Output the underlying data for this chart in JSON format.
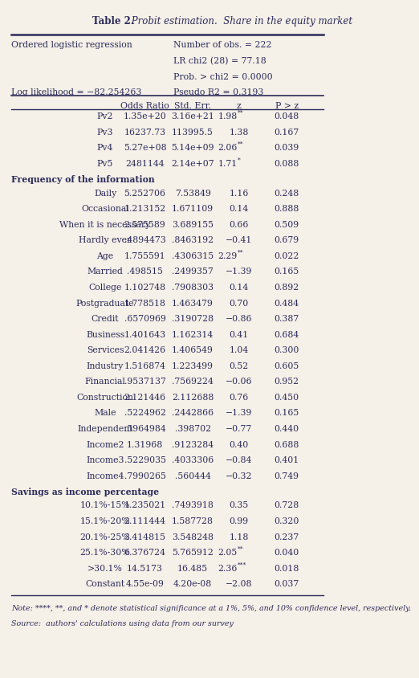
{
  "title_bold": "Table 2.",
  "title_italic": " Probit estimation.  Share in the equity market",
  "header_left1": "Ordered logistic regression",
  "header_right1": "Number of obs. = 222",
  "header_right2": "LR chi2 (28) = 77.18",
  "header_right3": "Prob. > chi2 = 0.0000",
  "header_left2": "Log likelihood = −82.254263",
  "header_right4": "Pseudo R2 = 0.3193",
  "col_headers": [
    "",
    "Odds Ratio",
    "Std. Err.",
    "z",
    "P > z"
  ],
  "rows": [
    {
      "label": "Pv2",
      "bold": false,
      "odds": "1.35e+20",
      "se": "3.16e+21",
      "z": "1.98**",
      "p": "0.048"
    },
    {
      "label": "Pv3",
      "bold": false,
      "odds": "16237.73",
      "se": "113995.5",
      "z": "1.38",
      "p": "0.167"
    },
    {
      "label": "Pv4",
      "bold": false,
      "odds": "5.27e+08",
      "se": "5.14e+09",
      "z": "2.06**",
      "p": "0.039"
    },
    {
      "label": "Pv5",
      "bold": false,
      "odds": "2481144",
      "se": "2.14e+07",
      "z": "1.71*",
      "p": "0.088"
    },
    {
      "label": "Frequency of the information",
      "bold": true,
      "odds": "",
      "se": "",
      "z": "",
      "p": ""
    },
    {
      "label": "Daily",
      "bold": false,
      "odds": "5.252706",
      "se": "7.53849",
      "z": "1.16",
      "p": "0.248"
    },
    {
      "label": "Occasional",
      "bold": false,
      "odds": "1.213152",
      "se": "1.671109",
      "z": "0.14",
      "p": "0.888"
    },
    {
      "label": "When it is necessary",
      "bold": false,
      "odds": "2.575589",
      "se": "3.689155",
      "z": "0.66",
      "p": "0.509"
    },
    {
      "label": "Hardly ever",
      "bold": false,
      "odds": ".4894473",
      "se": ".8463192",
      "z": "−0.41",
      "p": "0.679"
    },
    {
      "label": "Age",
      "bold": false,
      "odds": "1.755591",
      "se": ".4306315",
      "z": "2.29**",
      "p": "0.022"
    },
    {
      "label": "Married",
      "bold": false,
      "odds": ".498515",
      "se": ".2499357",
      "z": "−1.39",
      "p": "0.165"
    },
    {
      "label": "College",
      "bold": false,
      "odds": "1.102748",
      "se": ".7908303",
      "z": "0.14",
      "p": "0.892"
    },
    {
      "label": "Postgraduate",
      "bold": false,
      "odds": "1.778518",
      "se": "1.463479",
      "z": "0.70",
      "p": "0.484"
    },
    {
      "label": "Credit",
      "bold": false,
      "odds": ".6570969",
      "se": ".3190728",
      "z": "−0.86",
      "p": "0.387"
    },
    {
      "label": "Business",
      "bold": false,
      "odds": "1.401643",
      "se": "1.162314",
      "z": "0.41",
      "p": "0.684"
    },
    {
      "label": "Services",
      "bold": false,
      "odds": "2.041426",
      "se": "1.406549",
      "z": "1.04",
      "p": "0.300"
    },
    {
      "label": "Industry",
      "bold": false,
      "odds": "1.516874",
      "se": "1.223499",
      "z": "0.52",
      "p": "0.605"
    },
    {
      "label": "Financial",
      "bold": false,
      "odds": ".9537137",
      "se": ".7569224",
      "z": "−0.06",
      "p": "0.952"
    },
    {
      "label": "Construction",
      "bold": false,
      "odds": "2.121446",
      "se": "2.112688",
      "z": "0.76",
      "p": "0.450"
    },
    {
      "label": "Male",
      "bold": false,
      "odds": ".5224962",
      "se": ".2442866",
      "z": "−1.39",
      "p": "0.165"
    },
    {
      "label": "Independent",
      "bold": false,
      "odds": ".5964984",
      "se": ".398702",
      "z": "−0.77",
      "p": "0.440"
    },
    {
      "label": "Income2",
      "bold": false,
      "odds": "1.31968",
      "se": ".9123284",
      "z": "0.40",
      "p": "0.688"
    },
    {
      "label": "Income3",
      "bold": false,
      "odds": ".5229035",
      "se": ".4033306",
      "z": "−0.84",
      "p": "0.401"
    },
    {
      "label": "Income4",
      "bold": false,
      "odds": ".7990265",
      "se": ".560444",
      "z": "−0.32",
      "p": "0.749"
    },
    {
      "label": "Savings as income percentage",
      "bold": true,
      "odds": "",
      "se": "",
      "z": "",
      "p": ""
    },
    {
      "label": "10.1%-15%",
      "bold": false,
      "odds": "1.235021",
      "se": ".7493918",
      "z": "0.35",
      "p": "0.728"
    },
    {
      "label": "15.1%-20%",
      "bold": false,
      "odds": "2.111444",
      "se": "1.587728",
      "z": "0.99",
      "p": "0.320"
    },
    {
      "label": "20.1%-25%",
      "bold": false,
      "odds": "3.414815",
      "se": "3.548248",
      "z": "1.18",
      "p": "0.237"
    },
    {
      "label": "25.1%-30%",
      "bold": false,
      "odds": "6.376724",
      "se": "5.765912",
      "z": "2.05**",
      "p": "0.040"
    },
    {
      ">30.1%": ">30.1%",
      "label": ">30.1%",
      "bold": false,
      "odds": "14.5173",
      "se": "16.485",
      "z": "2.36***",
      "p": "0.018"
    },
    {
      "label": "Constant",
      "bold": false,
      "odds": "4.55e-09",
      "se": "4.20e-08",
      "z": "−2.08",
      "p": "0.037"
    }
  ],
  "note": "Note: ****, **, and * denote statistical significance at a 1%, 5%, and 10% confidence level, respectively.",
  "source": "Source:  authors' calculations using data from our survey",
  "bg_color": "#f5f0e8",
  "text_color": "#2b2b5a",
  "font_family": "serif"
}
